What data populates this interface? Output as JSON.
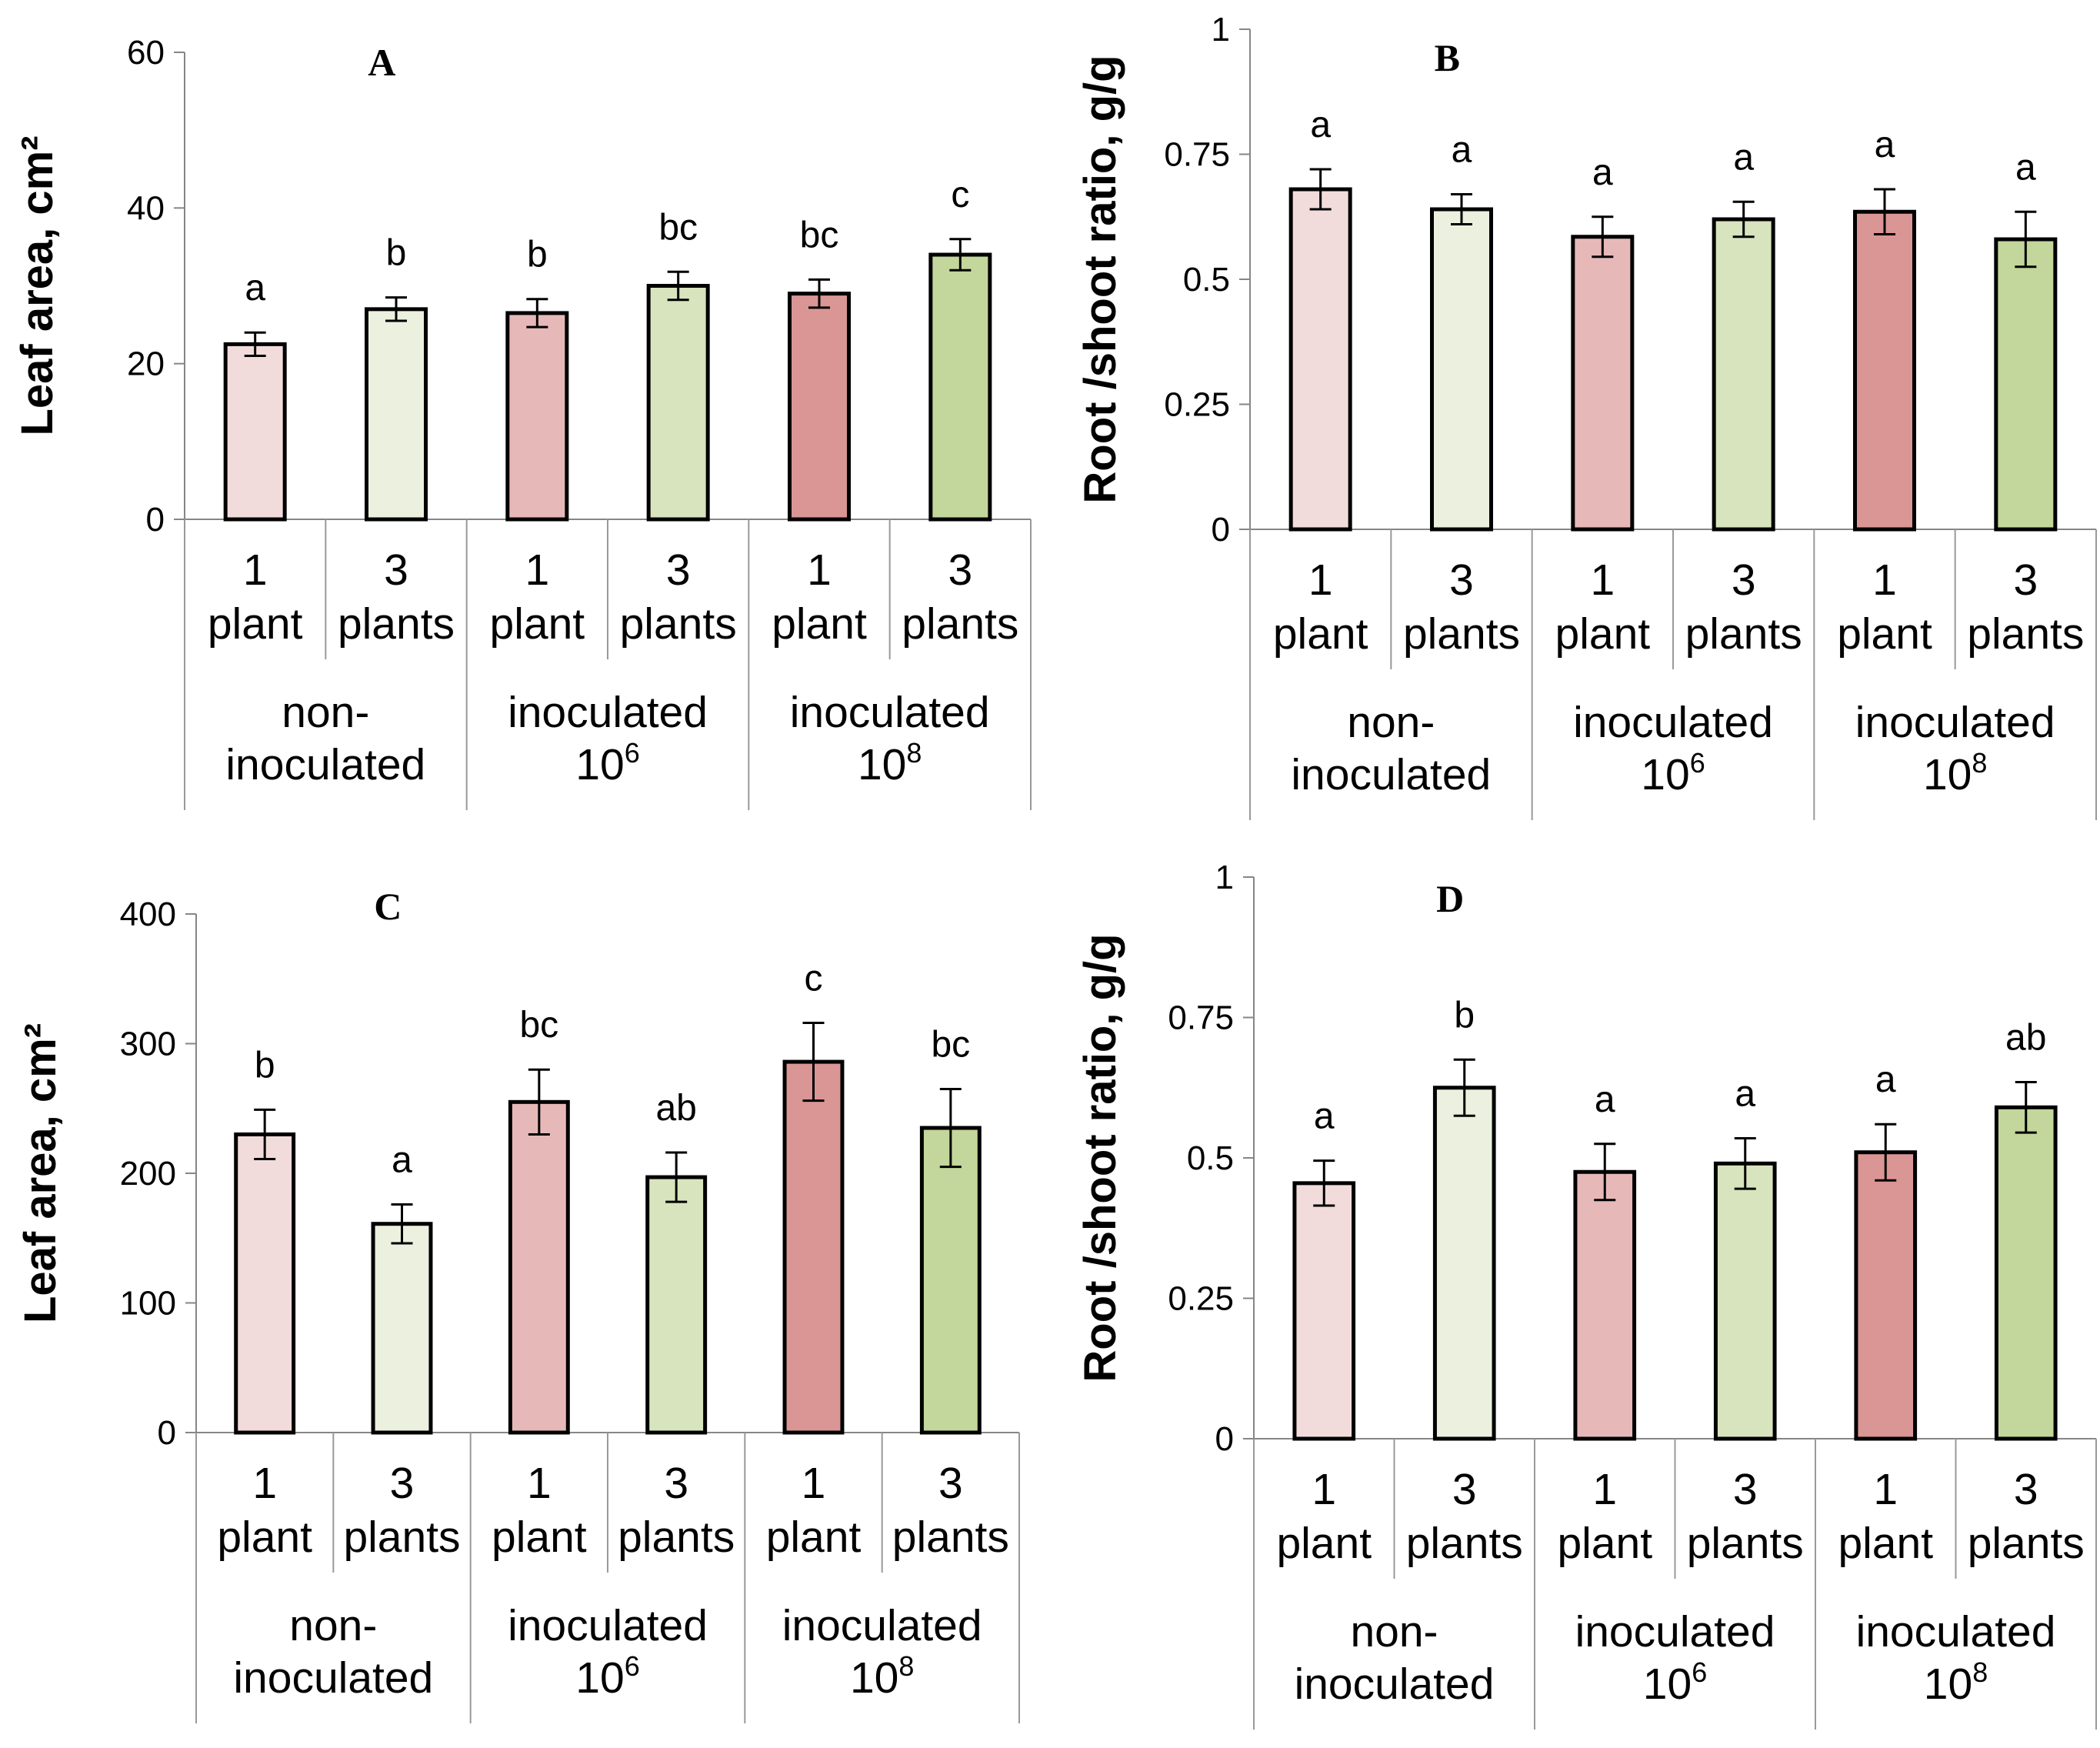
{
  "chart_data": [
    {
      "type": "bar",
      "title": "A",
      "ylabel": "Leaf  area, cm²",
      "ylim": [
        0,
        60
      ],
      "yticks": [
        0,
        20,
        40,
        60
      ],
      "ytick_labels": [
        "0",
        "20",
        "40",
        "60"
      ],
      "categories": [
        {
          "count": "1",
          "unit": "plant"
        },
        {
          "count": "3",
          "unit": "plants"
        },
        {
          "count": "1",
          "unit": "plant"
        },
        {
          "count": "3",
          "unit": "plants"
        },
        {
          "count": "1",
          "unit": "plant"
        },
        {
          "count": "3",
          "unit": "plants"
        }
      ],
      "groups": [
        {
          "line1": "non-",
          "line2": "inoculated",
          "exp": ""
        },
        {
          "line1": "inoculated",
          "line2": "10",
          "exp": "6"
        },
        {
          "line1": "inoculated",
          "line2": "10",
          "exp": "8"
        }
      ],
      "values": [
        22.5,
        27,
        26.5,
        30,
        29,
        34
      ],
      "errors": [
        1.5,
        1.5,
        1.8,
        1.8,
        1.8,
        2.0
      ],
      "letters": [
        "a",
        "b",
        "b",
        "bc",
        "bc",
        "c"
      ]
    },
    {
      "type": "bar",
      "title": "B",
      "ylabel": "Root /shoot ratio, g/g",
      "ylim": [
        0,
        1
      ],
      "yticks": [
        0,
        0.25,
        0.5,
        0.75,
        1
      ],
      "ytick_labels": [
        "0",
        "0.25",
        "0.5",
        "0.75",
        "1"
      ],
      "categories": [
        {
          "count": "1",
          "unit": "plant"
        },
        {
          "count": "3",
          "unit": "plants"
        },
        {
          "count": "1",
          "unit": "plant"
        },
        {
          "count": "3",
          "unit": "plants"
        },
        {
          "count": "1",
          "unit": "plant"
        },
        {
          "count": "3",
          "unit": "plants"
        }
      ],
      "groups": [
        {
          "line1": "non-",
          "line2": "inoculated",
          "exp": ""
        },
        {
          "line1": "inoculated",
          "line2": "10",
          "exp": "6"
        },
        {
          "line1": "inoculated",
          "line2": "10",
          "exp": "8"
        }
      ],
      "values": [
        0.68,
        0.64,
        0.585,
        0.62,
        0.635,
        0.58
      ],
      "errors": [
        0.04,
        0.03,
        0.04,
        0.035,
        0.045,
        0.055
      ],
      "letters": [
        "a",
        "a",
        "a",
        "a",
        "a",
        "a"
      ]
    },
    {
      "type": "bar",
      "title": "C",
      "ylabel": "Leaf  area, cm²",
      "ylim": [
        0,
        400
      ],
      "yticks": [
        0,
        100,
        200,
        300,
        400
      ],
      "ytick_labels": [
        "0",
        "100",
        "200",
        "300",
        "400"
      ],
      "categories": [
        {
          "count": "1",
          "unit": "plant"
        },
        {
          "count": "3",
          "unit": "plants"
        },
        {
          "count": "1",
          "unit": "plant"
        },
        {
          "count": "3",
          "unit": "plants"
        },
        {
          "count": "1",
          "unit": "plant"
        },
        {
          "count": "3",
          "unit": "plants"
        }
      ],
      "groups": [
        {
          "line1": "non-",
          "line2": "inoculated",
          "exp": ""
        },
        {
          "line1": "inoculated",
          "line2": "10",
          "exp": "6"
        },
        {
          "line1": "inoculated",
          "line2": "10",
          "exp": "8"
        }
      ],
      "values": [
        230,
        161,
        255,
        197,
        286,
        235
      ],
      "errors": [
        19,
        15,
        25,
        19,
        30,
        30
      ],
      "letters": [
        "b",
        "a",
        "bc",
        "ab",
        "c",
        "bc"
      ]
    },
    {
      "type": "bar",
      "title": "D",
      "ylabel": "Root /shoot ratio, g/g",
      "ylim": [
        0,
        1
      ],
      "yticks": [
        0,
        0.25,
        0.5,
        0.75,
        1
      ],
      "ytick_labels": [
        "0",
        "0.25",
        "0.5",
        "0.75",
        "1"
      ],
      "categories": [
        {
          "count": "1",
          "unit": "plant"
        },
        {
          "count": "3",
          "unit": "plants"
        },
        {
          "count": "1",
          "unit": "plant"
        },
        {
          "count": "3",
          "unit": "plants"
        },
        {
          "count": "1",
          "unit": "plant"
        },
        {
          "count": "3",
          "unit": "plants"
        }
      ],
      "groups": [
        {
          "line1": "non-",
          "line2": "inoculated",
          "exp": ""
        },
        {
          "line1": "inoculated",
          "line2": "10",
          "exp": "6"
        },
        {
          "line1": "inoculated",
          "line2": "10",
          "exp": "8"
        }
      ],
      "values": [
        0.455,
        0.625,
        0.475,
        0.49,
        0.51,
        0.59
      ],
      "errors": [
        0.04,
        0.05,
        0.05,
        0.045,
        0.05,
        0.045
      ],
      "letters": [
        "a",
        "b",
        "a",
        "a",
        "a",
        "ab"
      ]
    }
  ],
  "colors": {
    "bars": [
      "#f2dcdb",
      "#ebf1de",
      "#e6b9b8",
      "#d7e4bd",
      "#d99694",
      "#c3d69b"
    ],
    "axis": "#000000",
    "grid": "#868686"
  }
}
